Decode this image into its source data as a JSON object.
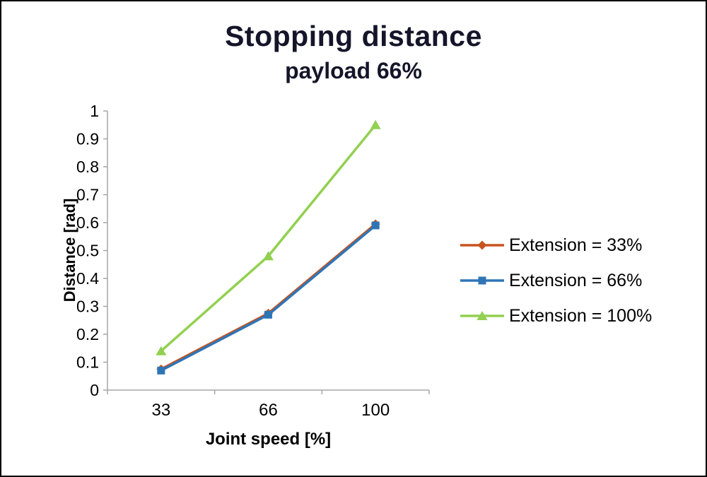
{
  "chart_data": {
    "type": "line",
    "title": "Stopping distance",
    "subtitle": "payload 66%",
    "xlabel": "Joint speed [%]",
    "ylabel": "Distance [rad]",
    "categories": [
      "33",
      "66",
      "100"
    ],
    "series": [
      {
        "name": "Extension = 33%",
        "values": [
          0.075,
          0.275,
          0.595
        ],
        "color": "#C9531E",
        "marker": "diamond"
      },
      {
        "name": "Extension = 66%",
        "values": [
          0.07,
          0.27,
          0.59
        ],
        "color": "#2E75B6",
        "marker": "square"
      },
      {
        "name": "Extension = 100%",
        "values": [
          0.14,
          0.48,
          0.95
        ],
        "color": "#92D050",
        "marker": "triangle"
      }
    ],
    "ylim": [
      0,
      1
    ],
    "yticks": [
      "0",
      "0.1",
      "0.2",
      "0.3",
      "0.4",
      "0.5",
      "0.6",
      "0.7",
      "0.8",
      "0.9",
      "1"
    ],
    "grid": false,
    "legend_position": "right",
    "axis_color": "#A6A6A6"
  }
}
